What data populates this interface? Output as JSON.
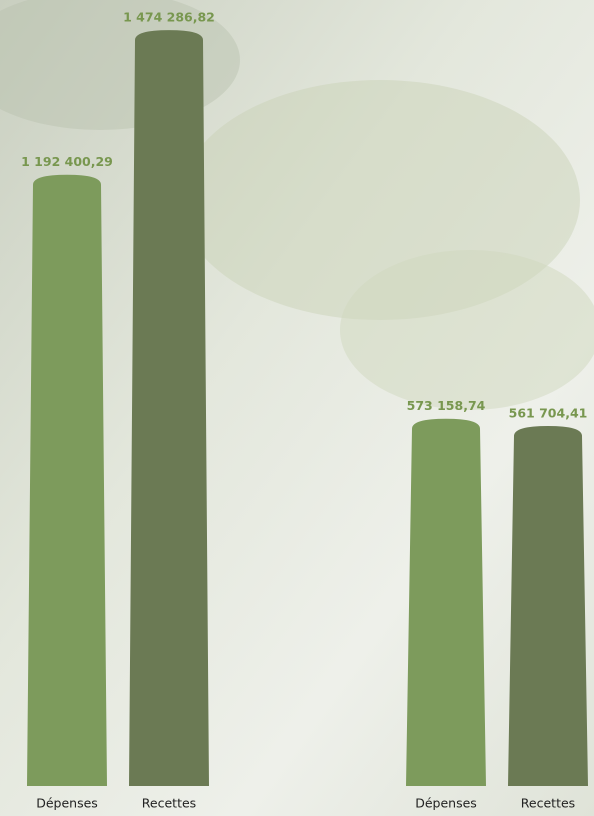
{
  "chart_data": [
    {
      "type": "bar",
      "categories": [
        "Dépenses",
        "Recettes"
      ],
      "values": [
        1192400.29,
        1474286.82
      ],
      "value_labels": [
        "1 192 400,29",
        "1 474 286,82"
      ],
      "colors": [
        "#7d9b5c",
        "#6b7a54"
      ],
      "ylim": [
        0,
        1500000
      ]
    },
    {
      "type": "bar",
      "categories": [
        "Dépenses",
        "Recettes"
      ],
      "values": [
        573158.74,
        561704.41
      ],
      "value_labels": [
        "573 158,74",
        "561 704,41"
      ],
      "colors": [
        "#7d9b5c",
        "#6b7a54"
      ],
      "ylim": [
        0,
        1200000
      ]
    }
  ]
}
